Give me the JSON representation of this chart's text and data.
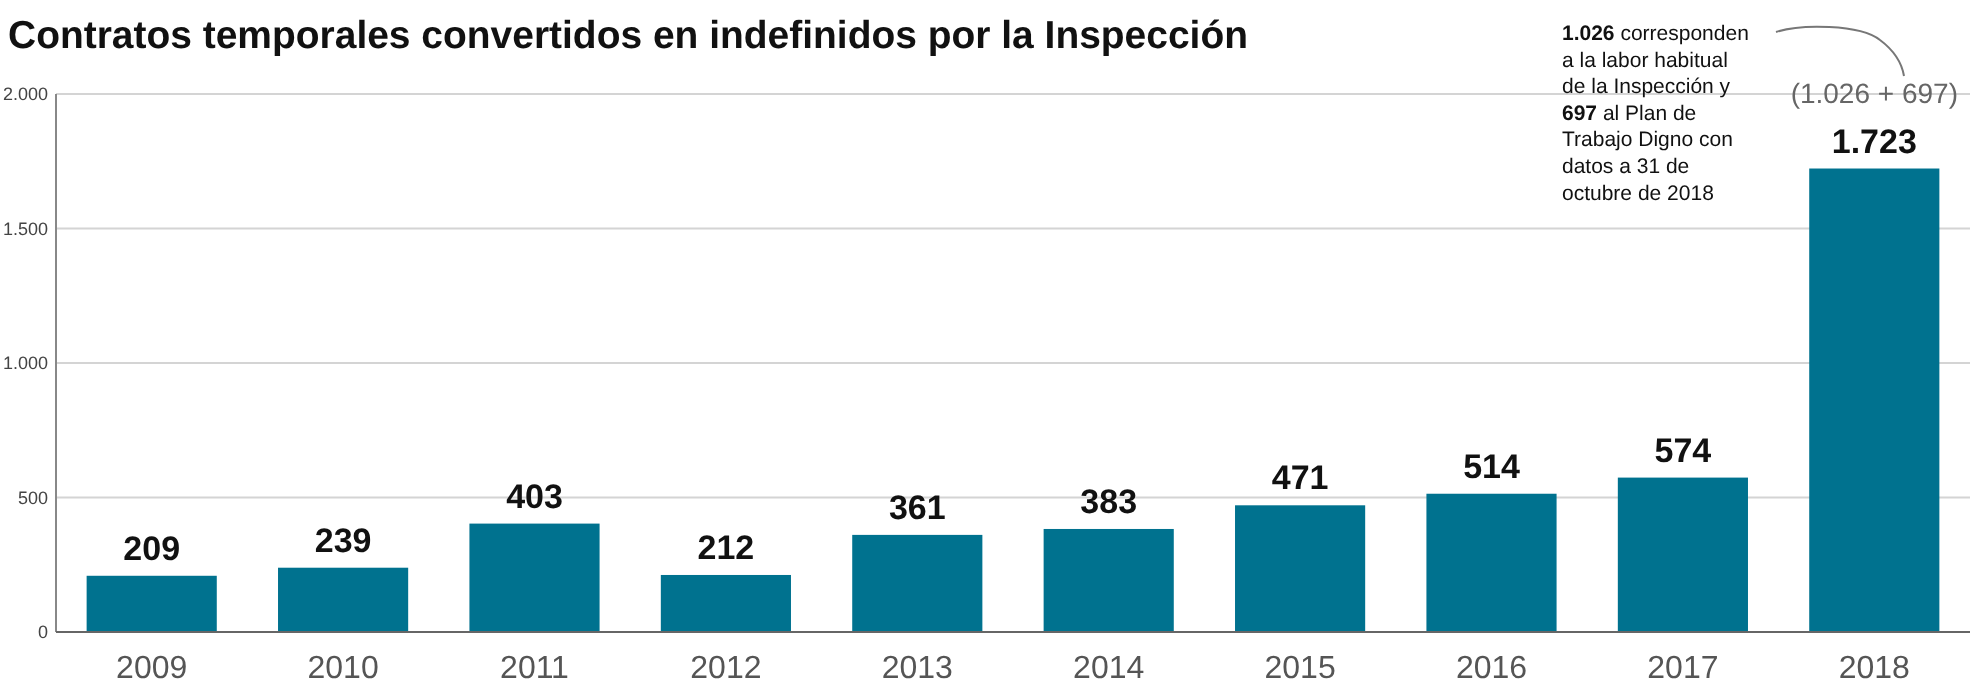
{
  "chart_data": {
    "type": "bar",
    "title": "Contratos temporales convertidos en indefinidos por la Inspección",
    "categories": [
      "2009",
      "2010",
      "2011",
      "2012",
      "2013",
      "2014",
      "2015",
      "2016",
      "2017",
      "2018"
    ],
    "values": [
      209,
      239,
      403,
      212,
      361,
      383,
      471,
      514,
      574,
      1723
    ],
    "value_labels": [
      "209",
      "239",
      "403",
      "212",
      "361",
      "383",
      "471",
      "514",
      "574",
      "1.723"
    ],
    "color": "#00728f",
    "ylim": [
      0,
      2000
    ],
    "yticks": [
      0,
      {
        "value": 500,
        "label": "500"
      },
      {
        "value": 1000,
        "label": "1.000"
      },
      {
        "value": 1500,
        "label": "1.500"
      },
      {
        "value": 2000,
        "label": "2.000"
      }
    ],
    "grid": "y",
    "annotations": [
      "1.026 corresponden a la labor habitual de la Inspección y 697 al Plan de Trabajo Digno con datos a 31 de octubre de 2018",
      {
        "text": "(1.026 + 697)",
        "x": "2018",
        "y": 1723
      }
    ]
  }
}
